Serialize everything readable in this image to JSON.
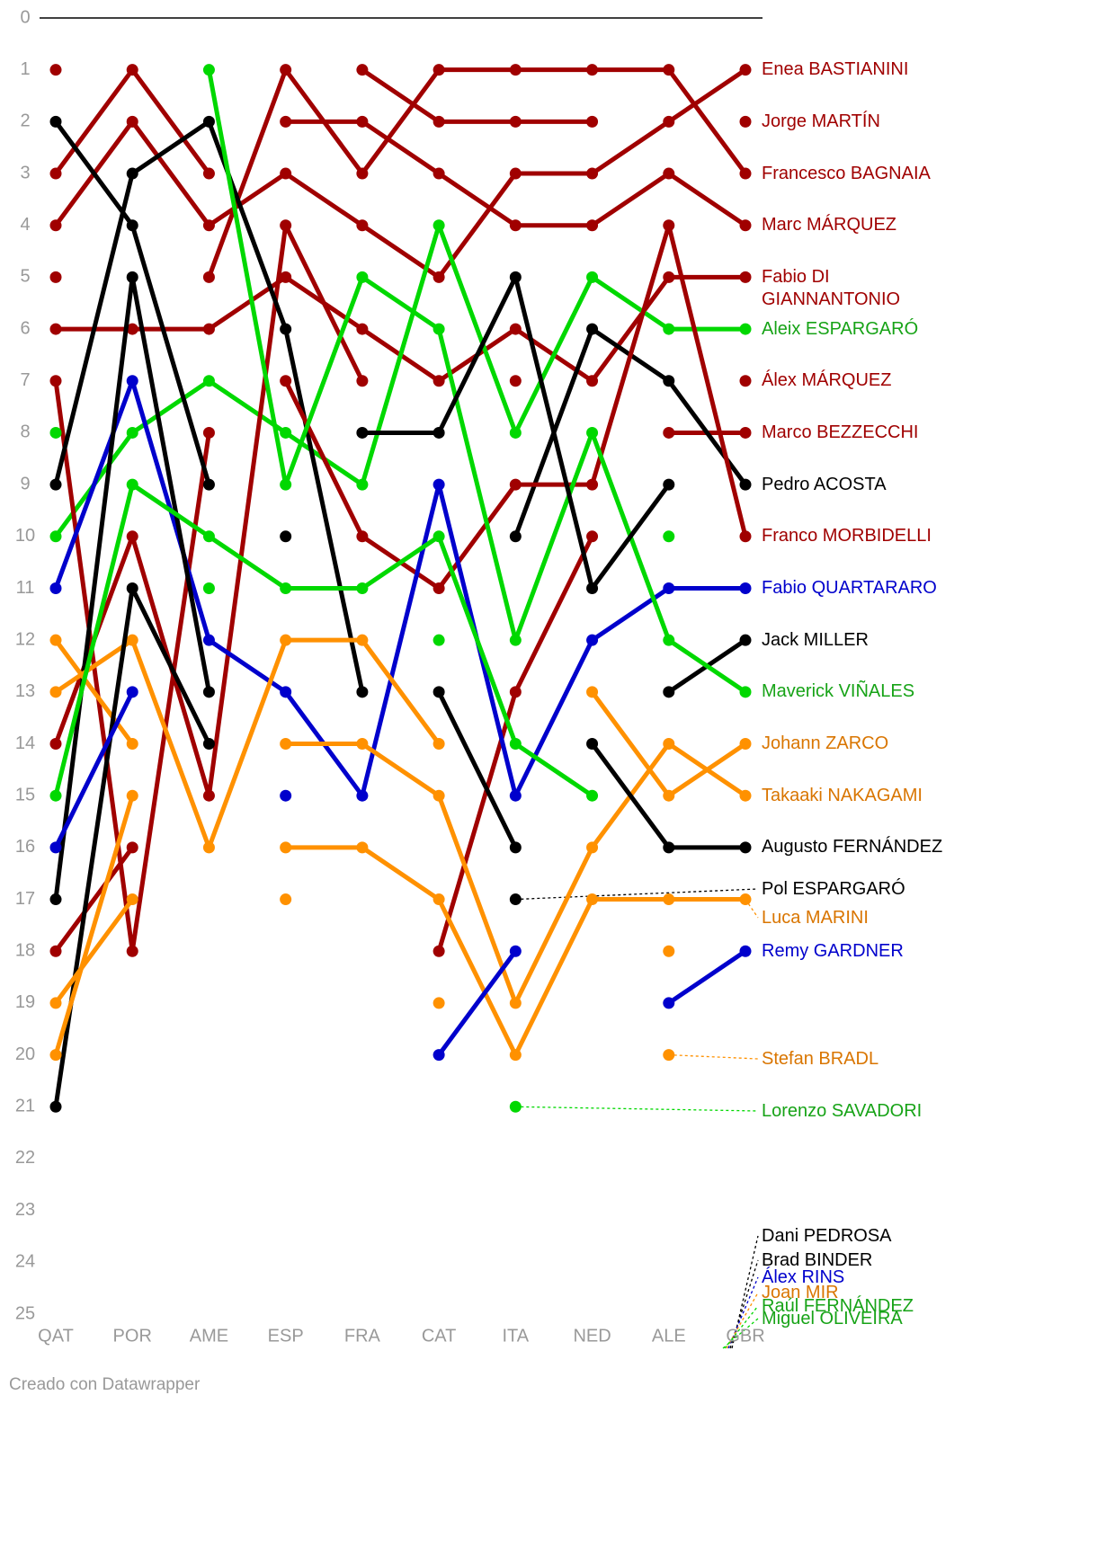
{
  "chart_data": {
    "type": "line",
    "categories": [
      "QAT",
      "POR",
      "AME",
      "ESP",
      "FRA",
      "CAT",
      "ITA",
      "NED",
      "ALE",
      "GBR"
    ],
    "ylim": [
      0,
      25
    ],
    "inverted": true,
    "yticks": [
      0,
      1,
      2,
      3,
      4,
      5,
      6,
      7,
      8,
      9,
      10,
      11,
      12,
      13,
      14,
      15,
      16,
      17,
      18,
      19,
      20,
      21,
      22,
      23,
      24,
      25
    ],
    "series": [
      {
        "name": "Enea BASTIANINI",
        "color": "#a00000",
        "values": [
          4,
          2,
          4,
          3,
          4,
          5,
          3,
          3,
          2,
          1
        ]
      },
      {
        "name": "Jorge MARTÍN",
        "color": "#a00000",
        "values": [
          3,
          1,
          3,
          null,
          1,
          2,
          2,
          2,
          null,
          2
        ]
      },
      {
        "name": "Francesco BAGNAIA",
        "color": "#a00000",
        "values": [
          1,
          null,
          5,
          1,
          3,
          1,
          1,
          1,
          1,
          3
        ]
      },
      {
        "name": "Marc MÁRQUEZ",
        "color": "#a00000",
        "values": [
          5,
          null,
          null,
          2,
          2,
          3,
          4,
          4,
          3,
          4
        ]
      },
      {
        "name": "Fabio DI GIANNANTONIO",
        "color": "#a00000",
        "values": [
          6,
          6,
          6,
          5,
          6,
          7,
          6,
          7,
          5,
          5
        ]
      },
      {
        "name": "Aleix ESPARGARÓ",
        "color": "#00d800",
        "values": [
          10,
          8,
          7,
          8,
          9,
          4,
          8,
          5,
          6,
          6
        ]
      },
      {
        "name": "Álex MÁRQUEZ",
        "color": "#a00000",
        "values": [
          7,
          18,
          8,
          null,
          null,
          18,
          13,
          10,
          null,
          7
        ]
      },
      {
        "name": "Marco BEZZECCHI",
        "color": "#a00000",
        "values": [
          14,
          10,
          15,
          4,
          7,
          null,
          7,
          null,
          8,
          8
        ]
      },
      {
        "name": "Pedro ACOSTA",
        "color": "#000000",
        "values": [
          9,
          3,
          2,
          6,
          13,
          null,
          10,
          6,
          7,
          9
        ]
      },
      {
        "name": "Franco MORBIDELLI",
        "color": "#a00000",
        "values": [
          18,
          16,
          null,
          7,
          10,
          11,
          9,
          9,
          4,
          10
        ]
      },
      {
        "name": "Fabio QUARTARARO",
        "color": "#0000cc",
        "values": [
          11,
          7,
          12,
          13,
          15,
          9,
          15,
          12,
          11,
          11
        ]
      },
      {
        "name": "Jack MILLER",
        "color": "#000000",
        "values": [
          17,
          5,
          13,
          null,
          null,
          13,
          16,
          null,
          13,
          12
        ]
      },
      {
        "name": "Maverick VIÑALES",
        "color": "#00d800",
        "values": [
          8,
          null,
          1,
          9,
          5,
          6,
          12,
          8,
          12,
          13
        ]
      },
      {
        "name": "Johann ZARCO",
        "color": "#ff9100",
        "values": [
          13,
          12,
          16,
          12,
          12,
          14,
          null,
          13,
          15,
          14
        ]
      },
      {
        "name": "Takaaki NAKAGAMI",
        "color": "#ff9100",
        "values": [
          12,
          14,
          null,
          14,
          14,
          15,
          19,
          16,
          14,
          15
        ]
      },
      {
        "name": "Augusto FERNÁNDEZ",
        "color": "#000000",
        "values": [
          21,
          11,
          14,
          null,
          null,
          null,
          null,
          14,
          16,
          16
        ]
      },
      {
        "name": "Pol ESPARGARÓ",
        "color": "#000000",
        "values": [
          null,
          null,
          null,
          null,
          null,
          null,
          17,
          null,
          null,
          null
        ]
      },
      {
        "name": "Luca MARINI",
        "color": "#ff9100",
        "values": [
          19,
          17,
          null,
          16,
          16,
          17,
          20,
          17,
          17,
          17
        ]
      },
      {
        "name": "Remy GARDNER",
        "color": "#0000cc",
        "values": [
          null,
          null,
          null,
          null,
          null,
          null,
          null,
          null,
          19,
          18
        ]
      },
      {
        "name": "Stefan BRADL",
        "color": "#ff9100",
        "values": [
          null,
          null,
          null,
          null,
          null,
          null,
          null,
          null,
          20,
          null
        ]
      },
      {
        "name": "Lorenzo SAVADORI",
        "color": "#00d800",
        "values": [
          null,
          null,
          null,
          null,
          null,
          null,
          21,
          null,
          null,
          null
        ]
      },
      {
        "name": "Dani PEDROSA",
        "color": "#000000",
        "values": [
          null,
          null,
          null,
          10,
          null,
          null,
          null,
          null,
          null,
          null
        ]
      },
      {
        "name": "Brad BINDER",
        "color": "#000000",
        "values": [
          2,
          4,
          9,
          null,
          8,
          8,
          5,
          11,
          9,
          null
        ]
      },
      {
        "name": "Álex RINS",
        "color": "#0000cc",
        "values": [
          16,
          13,
          null,
          15,
          null,
          20,
          18,
          null,
          null,
          null
        ]
      },
      {
        "name": "Joan MIR",
        "color": "#ff9100",
        "values": [
          20,
          15,
          null,
          17,
          null,
          19,
          null,
          null,
          18,
          null
        ]
      },
      {
        "name": "Raúl FERNÁNDEZ",
        "color": "#00d800",
        "values": [
          null,
          null,
          11,
          null,
          null,
          12,
          null,
          null,
          10,
          null
        ]
      },
      {
        "name": "Miguel OLIVEIRA",
        "color": "#00d800",
        "values": [
          15,
          9,
          10,
          11,
          11,
          10,
          14,
          15,
          null,
          null
        ]
      }
    ],
    "source": "Creado con Datawrapper"
  }
}
